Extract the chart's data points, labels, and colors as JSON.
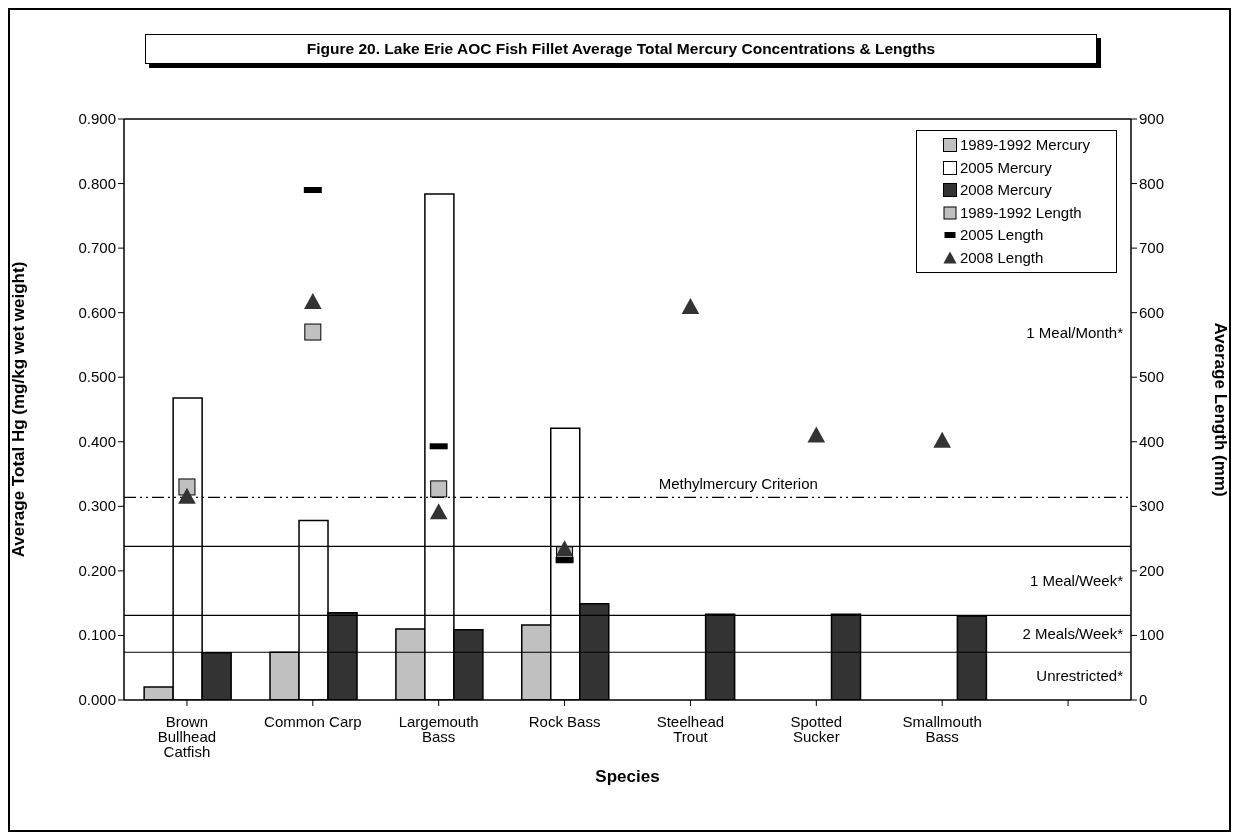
{
  "chart_data": {
    "type": "bar",
    "title": "Figure 20. Lake Erie AOC Fish Fillet Average Total Mercury Concentrations & Lengths",
    "xlabel": "Species",
    "ylabel": "Average Total Hg (mg/kg wet weight)",
    "y2label": "Average Length (mm)",
    "categories": [
      "Brown Bullhead Catfish",
      "Common Carp",
      "Largemouth Bass",
      "Rock Bass",
      "Steelhead Trout",
      "Spotted Sucker",
      "Smallmouth Bass",
      null
    ],
    "series": [
      {
        "name": "1989-1992 Mercury",
        "color": "#c0c0c0",
        "values": [
          0.02,
          0.074,
          0.11,
          0.116,
          null,
          null,
          null,
          null
        ]
      },
      {
        "name": "2005 Mercury",
        "color": "#ffffff",
        "values": [
          0.468,
          0.278,
          0.784,
          0.421,
          null,
          null,
          null,
          null
        ]
      },
      {
        "name": "2008 Mercury",
        "color": "#333333",
        "values": [
          0.073,
          0.135,
          0.109,
          0.149,
          0.133,
          0.133,
          0.13,
          null
        ]
      },
      {
        "name": "1989-1992 Length",
        "type": "scatter",
        "axis": "y2",
        "marker": "square",
        "color": "#c0c0c0",
        "values": [
          330,
          570,
          327,
          225,
          null,
          null,
          null,
          null
        ]
      },
      {
        "name": "2005 Length",
        "type": "scatter",
        "axis": "y2",
        "color": "#000000",
        "values": [
          null,
          790,
          393,
          217,
          null,
          null,
          null,
          null
        ]
      },
      {
        "name": "2008 Length",
        "type": "scatter",
        "axis": "y2",
        "marker": "triangle",
        "color": "#333333",
        "values": [
          315,
          617,
          291,
          234,
          609,
          410,
          402,
          null
        ]
      }
    ],
    "ylim": [
      0,
      0.9
    ],
    "yticks": [
      {
        "value": 0,
        "label": "0.000"
      },
      {
        "value": 0.1,
        "label": "0.100"
      },
      {
        "value": 0.2,
        "label": "0.200"
      },
      {
        "value": 0.3,
        "label": "0.300"
      },
      {
        "value": 0.4,
        "label": "0.400"
      },
      {
        "value": 0.5,
        "label": "0.500"
      },
      {
        "value": 0.6,
        "label": "0.600"
      },
      {
        "value": 0.7,
        "label": "0.700"
      },
      {
        "value": 0.8,
        "label": "0.800"
      },
      {
        "value": 0.9,
        "label": "0.900"
      }
    ],
    "y2lim": [
      0,
      900
    ],
    "y2ticks": [
      0,
      100,
      200,
      300,
      400,
      500,
      600,
      700,
      800,
      900
    ],
    "ref_lines": [
      {
        "axis": "y",
        "value": 0.314,
        "label": "Methylmercury Criterion",
        "line_style": "dashdot",
        "color": "#000000"
      },
      {
        "axis": "y",
        "value": 0.238,
        "color": "#000000"
      },
      {
        "axis": "y",
        "value": 0.131,
        "color": "#000000"
      },
      {
        "axis": "y",
        "value": 0.074,
        "color": "#000000"
      }
    ],
    "annotations": [
      "1 Meal/Month*",
      "1 Meal/Week*",
      "2 Meals/Week*",
      "Unrestricted*"
    ],
    "legend": "top right",
    "grid": false
  }
}
